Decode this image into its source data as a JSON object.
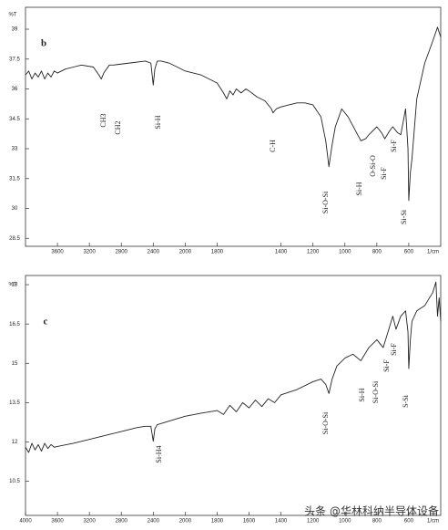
{
  "chart_data": [
    {
      "type": "line",
      "panel_label": "b",
      "y_label": "%T",
      "x_label": "1/cm",
      "xlim": [
        4000,
        400
      ],
      "x_scale_break": 2000,
      "ylim": [
        28.1,
        40.1
      ],
      "yticks": [
        39,
        37.5,
        36,
        34.5,
        33,
        31.5,
        30,
        28.5
      ],
      "xticks": [
        3600,
        3200,
        2800,
        2400,
        2000,
        1800,
        1400,
        1200,
        1000,
        800,
        600
      ],
      "series": [
        {
          "color": "#222222",
          "x": [
            4000,
            3960,
            3920,
            3880,
            3840,
            3800,
            3760,
            3720,
            3680,
            3640,
            3600,
            3500,
            3400,
            3300,
            3150,
            3080,
            3050,
            3020,
            2950,
            2900,
            2700,
            2500,
            2430,
            2400,
            2380,
            2350,
            2300,
            2200,
            2100,
            2000,
            1900,
            1800,
            1760,
            1740,
            1720,
            1700,
            1680,
            1650,
            1620,
            1600,
            1550,
            1500,
            1460,
            1450,
            1430,
            1400,
            1350,
            1300,
            1250,
            1200,
            1150,
            1120,
            1100,
            1080,
            1060,
            1020,
            980,
            940,
            900,
            870,
            850,
            800,
            770,
            750,
            720,
            700,
            670,
            650,
            620,
            605,
            600,
            590,
            580,
            550,
            500,
            450,
            420,
            400
          ],
          "values": [
            36.7,
            36.9,
            36.5,
            36.8,
            36.6,
            36.9,
            36.5,
            36.8,
            36.6,
            36.9,
            36.8,
            37.0,
            37.1,
            37.2,
            37.1,
            36.7,
            36.5,
            36.8,
            37.2,
            37.2,
            37.3,
            37.4,
            37.3,
            36.2,
            37.0,
            37.4,
            37.4,
            37.3,
            37.1,
            36.9,
            36.7,
            36.3,
            35.8,
            35.5,
            35.9,
            35.7,
            36.0,
            35.8,
            36.0,
            35.9,
            35.6,
            35.4,
            35.0,
            34.8,
            35.0,
            35.1,
            35.2,
            35.3,
            35.3,
            35.2,
            34.6,
            33.4,
            32.1,
            33.2,
            34.1,
            35.0,
            34.6,
            34.0,
            33.4,
            33.5,
            33.7,
            34.1,
            33.8,
            33.5,
            33.9,
            34.1,
            33.8,
            33.7,
            35.0,
            33.0,
            30.4,
            31.8,
            32.5,
            35.5,
            37.3,
            38.4,
            39.1,
            38.6
          ]
        }
      ],
      "annotations": [
        "CH3",
        "CH2",
        "Si-H",
        "C-H",
        "Si-O-Si",
        "Si-H",
        "O-Si-O",
        "Si-F",
        "Si-F",
        "Si-Si"
      ]
    },
    {
      "type": "line",
      "panel_label": "c",
      "y_label": "%T",
      "x_label": "1/cm",
      "xlim": [
        4000,
        400
      ],
      "x_scale_break": 2000,
      "ylim": [
        9.2,
        18.35
      ],
      "yticks": [
        18,
        16.5,
        15,
        13.5,
        12,
        10.5
      ],
      "xticks": [
        4000,
        3600,
        3200,
        2800,
        2400,
        2000,
        1800,
        1600,
        1400,
        1200,
        1000,
        800,
        600
      ],
      "series": [
        {
          "color": "#222222",
          "x": [
            4000,
            3960,
            3920,
            3880,
            3840,
            3800,
            3760,
            3720,
            3680,
            3640,
            3600,
            3400,
            3200,
            3000,
            2800,
            2600,
            2500,
            2430,
            2400,
            2380,
            2350,
            2200,
            2000,
            1900,
            1800,
            1760,
            1720,
            1680,
            1640,
            1600,
            1560,
            1520,
            1480,
            1440,
            1400,
            1300,
            1200,
            1150,
            1120,
            1100,
            1080,
            1050,
            1000,
            950,
            900,
            880,
            850,
            800,
            760,
            720,
            700,
            680,
            650,
            620,
            605,
            600,
            590,
            580,
            550,
            500,
            450,
            430,
            420,
            410,
            400
          ],
          "values": [
            11.8,
            11.6,
            11.95,
            11.7,
            11.9,
            11.65,
            11.95,
            11.75,
            11.9,
            11.8,
            11.83,
            11.95,
            12.1,
            12.25,
            12.4,
            12.55,
            12.6,
            12.6,
            12.03,
            12.5,
            12.66,
            12.8,
            12.98,
            13.1,
            13.2,
            13.05,
            13.4,
            13.15,
            13.5,
            13.3,
            13.6,
            13.35,
            13.65,
            13.5,
            13.8,
            14.0,
            14.3,
            14.4,
            14.2,
            13.85,
            14.4,
            14.9,
            15.2,
            15.35,
            15.1,
            15.3,
            15.6,
            15.9,
            15.6,
            16.4,
            16.8,
            16.3,
            16.8,
            17.0,
            16.2,
            14.8,
            15.9,
            16.6,
            17.0,
            17.2,
            17.7,
            18.1,
            16.8,
            17.5,
            16.6
          ]
        }
      ],
      "annotations": [
        "Si-H4",
        "Si-O-Si",
        "Si-H",
        "Si-O-Si",
        "Si-F",
        "Si-F",
        "S-Si"
      ]
    }
  ],
  "watermark": "头条 @华林科纳半导体设备"
}
